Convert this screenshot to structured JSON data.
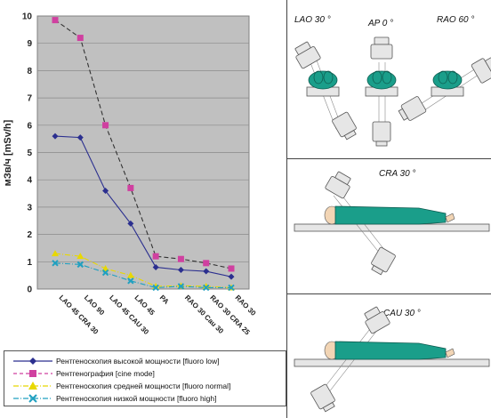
{
  "chart_data": {
    "type": "line",
    "ylabel": "мЗв/ч [mSv/h]",
    "ylim": [
      0,
      10
    ],
    "y_ticks": [
      "0",
      "1",
      "2",
      "3",
      "4",
      "5",
      "6",
      "7",
      "8",
      "9",
      "10"
    ],
    "categories": [
      "LAO 45 CRA 30",
      "LAO 90",
      "LAO 45 CAU 30",
      "LAO 45",
      "PA",
      "RAO 30 Cau 30",
      "RAO 30 CRA 25",
      "RAO 30"
    ],
    "x_ticks": [
      "LAO 45 CRA 30",
      "LAO 90",
      "LAO 45 CAU 30",
      "LAO 45",
      "PA",
      "RAO 30 Cau 30",
      "RAO 30 CRA 25",
      "RAO 30"
    ],
    "grid": true,
    "legend": "bottom",
    "series": [
      {
        "name": "Рентгеноскопия высокой мощности [fluoro low]",
        "color": "#2b2f8f",
        "marker": "diamond",
        "dash": "solid",
        "values": [
          5.6,
          5.55,
          3.6,
          2.4,
          0.8,
          0.7,
          0.65,
          0.45
        ]
      },
      {
        "name": "Рентгенография [cine mode]",
        "color": "#d040a0",
        "marker": "square",
        "dash": "dashed",
        "values": [
          9.85,
          9.2,
          6.0,
          3.7,
          1.2,
          1.1,
          0.95,
          0.75
        ]
      },
      {
        "name": "Рентгеноскопия средней мощности [fluoro normal]",
        "color": "#e8d800",
        "marker": "triangle",
        "dash": "dashdot",
        "values": [
          1.3,
          1.2,
          0.75,
          0.5,
          0.1,
          0.12,
          0.1,
          0.05
        ]
      },
      {
        "name": "Рентгеноскопия низкой мощности [fluoro high]",
        "color": "#20a0c0",
        "marker": "x",
        "dash": "dashdot",
        "values": [
          0.95,
          0.9,
          0.6,
          0.3,
          0.05,
          0.1,
          0.05,
          0.05
        ]
      }
    ]
  },
  "panels": {
    "lao_label": "LAO 30 °",
    "ap_label": "AP 0 °",
    "rao_label": "RAO 60 °",
    "cra_label": "CRA 30 °",
    "cau_label": "CAU 30 °"
  },
  "colors": {
    "plot_bg": "#c0c0c0",
    "patient": "#1a9e8a",
    "skin": "#f2d5b5",
    "tube": "#e6e6e6"
  }
}
